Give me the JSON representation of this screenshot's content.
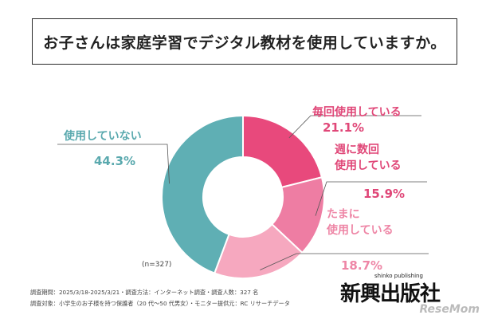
{
  "title": "お子さんは家庭学習でデジタル教材を使用していますか。",
  "sample_size": "(n=327)",
  "footnotes": [
    "調査期間：2025/3/18-2025/3/21・調査方法：インターネット調査・調査人数：327 名",
    "調査対象：小学生のお子様を持つ保護者（20 代～50 代男女）・モニター提供元：RC リサーチデータ"
  ],
  "logo": {
    "text": "新興出版社",
    "sub": "shinko publishing"
  },
  "watermark": "ReseMom",
  "chart_data": {
    "type": "pie",
    "donut": true,
    "categories": [
      "毎回使用している",
      "週に数回使用している",
      "たまに使用している",
      "使用していない"
    ],
    "values": [
      21.1,
      15.9,
      18.7,
      44.3
    ],
    "value_labels": [
      "21.1%",
      "15.9%",
      "18.7%",
      "44.3%"
    ],
    "label_lines": [
      [
        "毎回使用している"
      ],
      [
        "週に数回",
        "使用している"
      ],
      [
        "たまに",
        "使用している"
      ],
      [
        "使用していない"
      ]
    ],
    "colors": [
      "#e8497c",
      "#ee7da3",
      "#f6a8bf",
      "#5fafb4"
    ],
    "label_colors": [
      "#e04778",
      "#e04778",
      "#ee86a6",
      "#5aa9ae"
    ],
    "start_angle_deg": 0,
    "direction": "clockwise"
  }
}
